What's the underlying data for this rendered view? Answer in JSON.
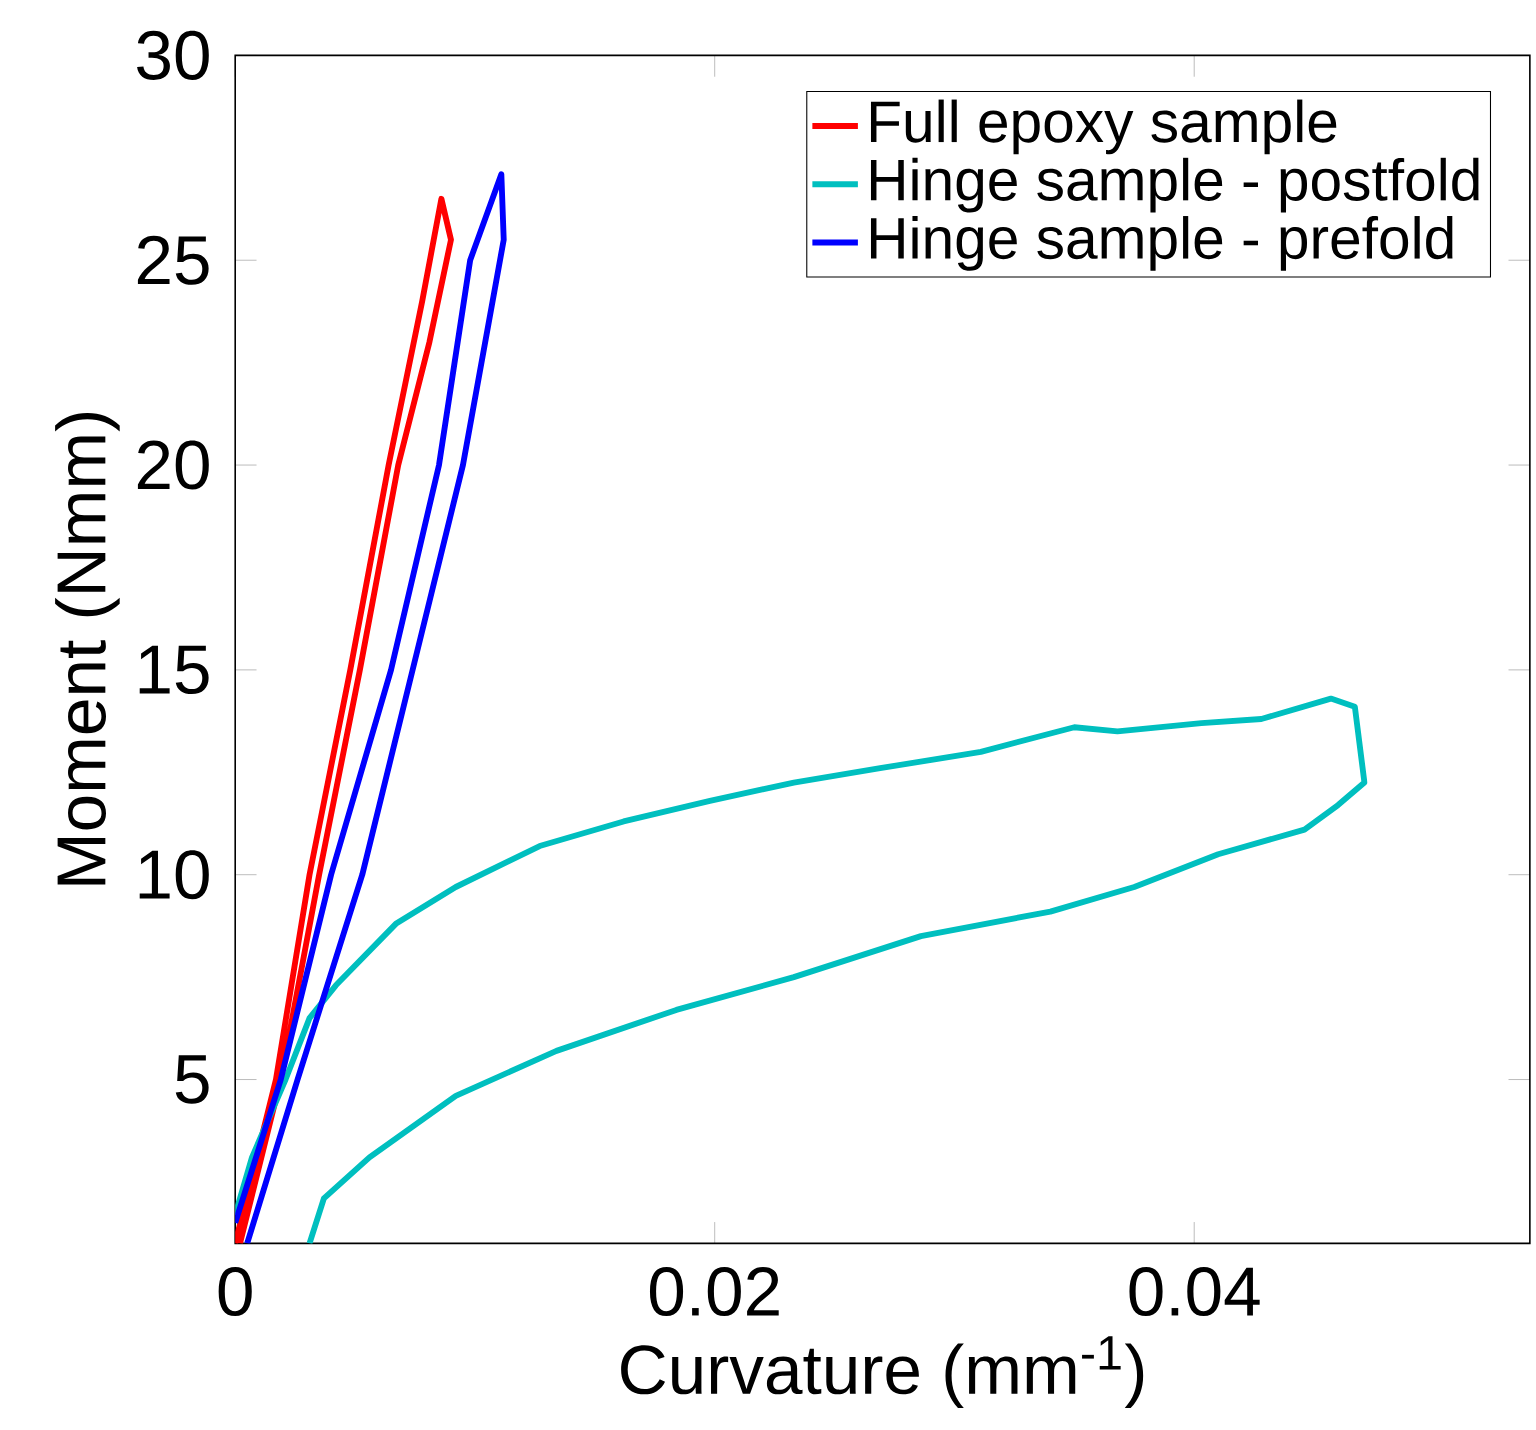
{
  "chart_data": {
    "type": "line",
    "xlabel": "Curvature (mm$^{-1}$)",
    "ylabel": "Moment (Nmm)",
    "xlim": [
      0,
      0.054
    ],
    "ylim": [
      1,
      30
    ],
    "xticks": [
      0,
      0.02,
      0.04
    ],
    "yticks": [
      5,
      10,
      15,
      20,
      25,
      30
    ],
    "legend": "top right",
    "series": [
      {
        "name": "Full epoxy sample",
        "color": "#ff0000",
        "x": [
          0,
          0.0017,
          0.0031,
          0.0048,
          0.0064,
          0.0078,
          0.0086,
          0.009,
          0.0081,
          0.0068,
          0.0052,
          0.0035,
          0.0019,
          0.0002
        ],
        "values": [
          1,
          5,
          10,
          15,
          20,
          24,
          26.5,
          25.5,
          23,
          20,
          15,
          10,
          5,
          1
        ]
      },
      {
        "name": "Hinge sample - postfold",
        "color": "#00bfbf",
        "x": [
          0.0031,
          0.0037,
          0.0056,
          0.0092,
          0.0134,
          0.0184,
          0.0233,
          0.0286,
          0.034,
          0.0375,
          0.041,
          0.0446,
          0.046,
          0.0471,
          0.0467,
          0.0457,
          0.0428,
          0.0403,
          0.0368,
          0.035,
          0.0311,
          0.0269,
          0.0233,
          0.0198,
          0.0162,
          0.0127,
          0.0092,
          0.0067,
          0.0042,
          0.0031,
          0.0021,
          0.0007,
          0
        ],
        "values": [
          1,
          2.1,
          3.1,
          4.6,
          5.7,
          6.7,
          7.5,
          8.5,
          9.1,
          9.7,
          10.5,
          11.1,
          11.7,
          12.25,
          14.1,
          14.3,
          13.8,
          13.7,
          13.5,
          13.6,
          13.0,
          12.6,
          12.25,
          11.8,
          11.3,
          10.7,
          9.7,
          8.8,
          7.3,
          6.5,
          5,
          3.1,
          1.7
        ]
      },
      {
        "name": "Hinge sample - prefold",
        "color": "#0000ff",
        "x": [
          0,
          0.0019,
          0.004,
          0.0065,
          0.0085,
          0.0098,
          0.0111,
          0.0112,
          0.0095,
          0.0074,
          0.0053,
          0.0026,
          0.0005
        ],
        "values": [
          1.5,
          5,
          10,
          15,
          20,
          25,
          27.1,
          25.5,
          20,
          15,
          10,
          5,
          1
        ]
      }
    ]
  }
}
